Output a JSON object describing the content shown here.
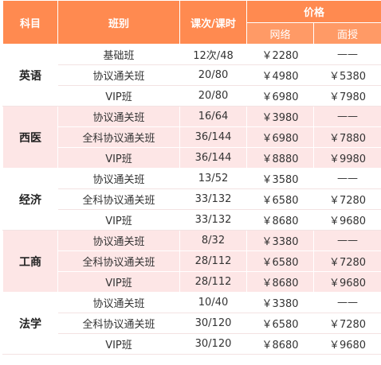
{
  "header": {
    "subject": "科目",
    "class": "班别",
    "lessons": "课次/课时",
    "price": "价格",
    "online": "网络",
    "offline": "面授"
  },
  "groups": [
    {
      "subject": "英语",
      "rows": [
        {
          "class": "基础班",
          "lessons": "12次/48",
          "online": "￥2280",
          "offline": "——"
        },
        {
          "class": "协议通关班",
          "lessons": "20/80",
          "online": "￥4980",
          "offline": "￥5380"
        },
        {
          "class": "VIP班",
          "lessons": "20/80",
          "online": "￥6980",
          "offline": "￥7980"
        }
      ]
    },
    {
      "subject": "西医",
      "rows": [
        {
          "class": "协议通关班",
          "lessons": "16/64",
          "online": "￥3980",
          "offline": "——"
        },
        {
          "class": "全科协议通关班",
          "lessons": "36/144",
          "online": "￥6980",
          "offline": "￥7880"
        },
        {
          "class": "VIP班",
          "lessons": "36/144",
          "online": "￥8880",
          "offline": "￥9980"
        }
      ]
    },
    {
      "subject": "经济",
      "rows": [
        {
          "class": "协议通关班",
          "lessons": "13/52",
          "online": "￥3580",
          "offline": "——"
        },
        {
          "class": "全科协议通关班",
          "lessons": "33/132",
          "online": "￥6580",
          "offline": "￥7280"
        },
        {
          "class": "VIP班",
          "lessons": "33/132",
          "online": "￥8680",
          "offline": "￥9680"
        }
      ]
    },
    {
      "subject": "工商",
      "rows": [
        {
          "class": "协议通关班",
          "lessons": "8/32",
          "online": "￥3380",
          "offline": "——"
        },
        {
          "class": "全科协议通关班",
          "lessons": "28/112",
          "online": "￥6580",
          "offline": "￥7280"
        },
        {
          "class": "VIP班",
          "lessons": "28/112",
          "online": "￥8680",
          "offline": "￥9680"
        }
      ]
    },
    {
      "subject": "法学",
      "rows": [
        {
          "class": "协议通关班",
          "lessons": "10/40",
          "online": "￥3380",
          "offline": "——"
        },
        {
          "class": "全科协议通关班",
          "lessons": "30/120",
          "online": "￥6580",
          "offline": "￥7280"
        },
        {
          "class": "VIP班",
          "lessons": "30/120",
          "online": "￥8680",
          "offline": "￥9680"
        }
      ]
    }
  ]
}
